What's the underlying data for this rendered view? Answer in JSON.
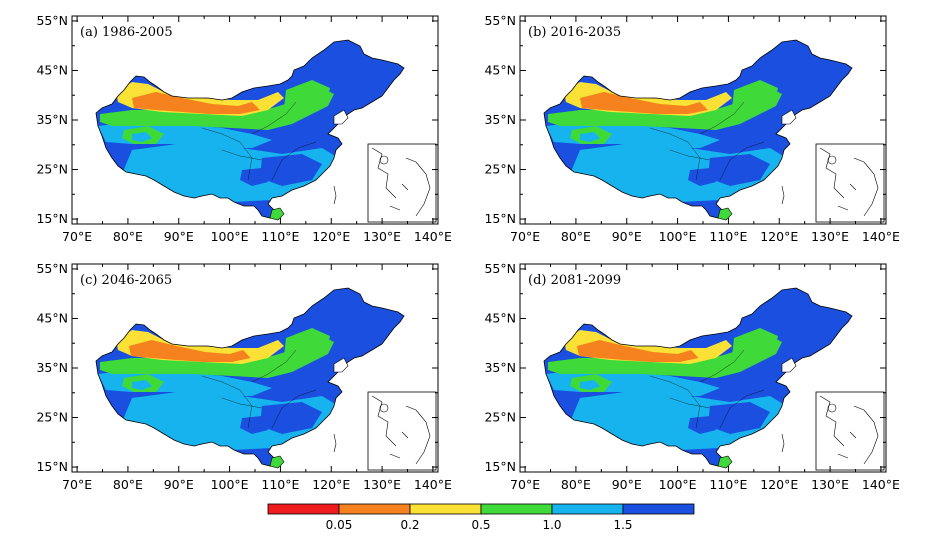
{
  "panels": [
    {
      "title": "(a)  1986-2005"
    },
    {
      "title": "(b)  2016-2035"
    },
    {
      "title": "(c)  2046-2065"
    },
    {
      "title": "(d)  2081-2099"
    }
  ],
  "axes": {
    "lat_labels": [
      "55°N",
      "45°N",
      "35°N",
      "25°N",
      "15°N"
    ],
    "lon_labels": [
      "70°E",
      "80°E",
      "90°E",
      "100°E",
      "110°E",
      "120°E",
      "130°E",
      "140°E"
    ],
    "lat_range": [
      14,
      56
    ],
    "lon_range": [
      69,
      141
    ]
  },
  "colorbar": {
    "colors": [
      "#ee1c1c",
      "#f5821f",
      "#fbe035",
      "#3fd93a",
      "#17b3ee",
      "#1a4fe0"
    ],
    "labels": [
      "0.05",
      "0.2",
      "0.5",
      "1.0",
      "1.5"
    ]
  },
  "chart_data": {
    "type": "heatmap",
    "title": "",
    "xlabel": "",
    "ylabel": "",
    "xlim": [
      69,
      141
    ],
    "ylim": [
      14,
      56
    ],
    "classes": [
      "<0.05",
      "0.05-0.2",
      "0.2-0.5",
      "0.5-1.0",
      "1.0-1.5",
      ">1.5"
    ],
    "panels": [
      "1986-2005",
      "2016-2035",
      "2046-2065",
      "2081-2099"
    ]
  }
}
